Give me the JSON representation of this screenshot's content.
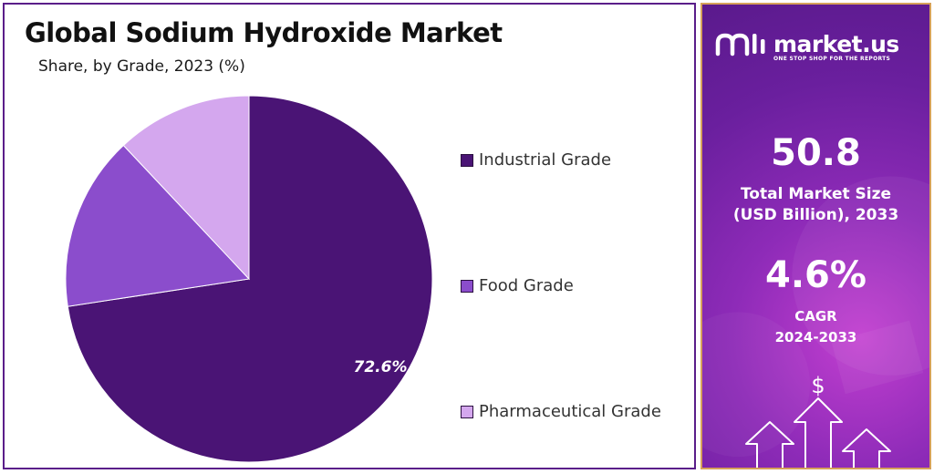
{
  "chart_data": {
    "type": "pie",
    "title": "Global Sodium Hydroxide Market",
    "subtitle": "Share, by Grade, 2023 (%)",
    "series": [
      {
        "name": "Industrial Grade",
        "value": 72.6,
        "color": "#4a1475"
      },
      {
        "name": "Food Grade",
        "value": 15.4,
        "color": "#8b4dcc"
      },
      {
        "name": "Pharmaceutical Grade",
        "value": 12.0,
        "color": "#d4a7ee"
      }
    ],
    "data_labels": [
      "72.6%"
    ],
    "legend_position": "right"
  },
  "brand": {
    "name": "market.us",
    "tagline": "ONE STOP SHOP FOR THE REPORTS"
  },
  "stats": {
    "market_size_value": "50.8",
    "market_size_label_1": "Total Market Size",
    "market_size_label_2": "(USD Billion), 2033",
    "cagr_value": "4.6%",
    "cagr_label_1": "CAGR",
    "cagr_label_2": "2024-2033"
  },
  "icons": {
    "logo": "market-us-logo-icon",
    "dollar": "dollar-icon",
    "arrows": "growth-arrows-icon"
  }
}
